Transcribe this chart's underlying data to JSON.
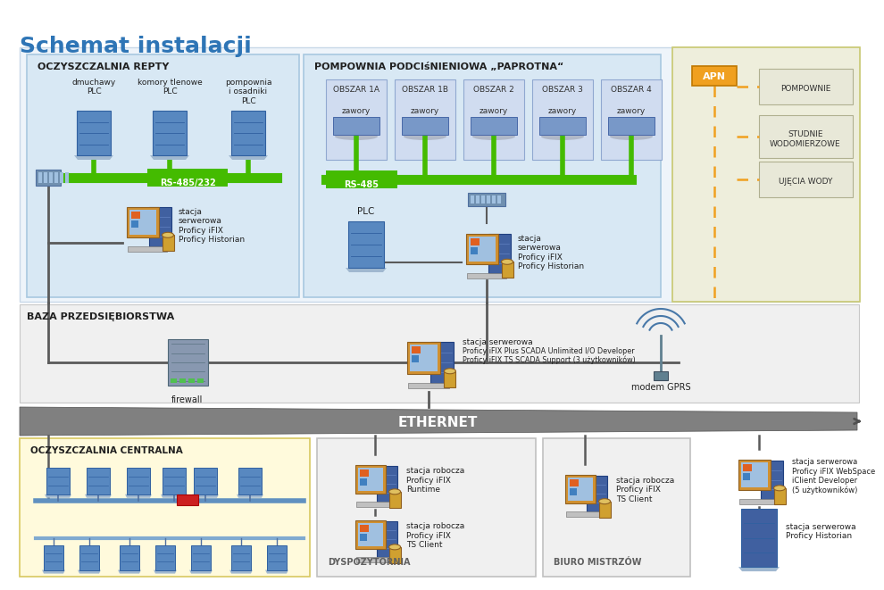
{
  "title": "Schemat instalacji",
  "title_color": "#2E75B6",
  "bg_color": "#FFFFFF",
  "rs485_color": "#44BB00",
  "line_color": "#5A5A5A",
  "ethernet_label": "ETHERNET",
  "ethernet_color": "#707070",
  "apn_color": "#F0A020",
  "apn_label": "APN",
  "apn_boxes": [
    "POMPOWNIE",
    "STUDNIE\nWODOMIERZOWE",
    "UJĘCIA WODY"
  ],
  "areas": [
    "OBSZAR 1A",
    "OBSZAR 1B",
    "OBSZAR 2",
    "OBSZAR 3",
    "OBSZAR 4"
  ],
  "repty_label": "OCZYSZCZALNIA REPTY",
  "pompownia_label": "POMPOWNIA PODCIśNIENIOWA „PAPROTNA“",
  "baza_label": "BAZA PRZEDSIĘBIORSTWA",
  "centralna_label": "OCZYSZCZALNIA CENTRALNA",
  "dyspozytornia_label": "DYSPOZYTORNIA",
  "biuro_label": "BIURO MISTRZÓW",
  "plc_labels_repty": [
    "dmuchawy\nPLC",
    "komory tlenowe\nPLC",
    "pompownia\ni osadniki\nPLC"
  ],
  "rs485_label": "RS-485/232",
  "rs485b_label": "RS-485",
  "server_repty_label": "stacja\nserwerowa\nProficy iFIX\nProficy Historian",
  "server_pompownia_label": "stacja\nserwerowa\nProficy iFIX\nProficy Historian",
  "plc_pompownia_label": "PLC",
  "firewall_label": "firewall",
  "server_baza_line1": "stacja serwerowa",
  "server_baza_line2": "Proficy iFIX Plus SCADA Unlimited I/O Developer",
  "server_baza_line3": "Proficy iFIX TS SCADA Support (3 użytkowników)",
  "modem_label": "modem GPRS",
  "stacja_runtime_label": "stacja robocza\nProficy iFIX\nRuntime",
  "stacja_ts_label": "stacja robocza\nProficy iFIX\nTS Client",
  "stacja_ts2_label": "stacja robocza\nProficy iFIX\nTS Client",
  "server_webspace_label": "stacja serwerowa\nProficy iFIX WebSpace\niClient Developer\n(5 użytkowników)",
  "server_historian_label": "stacja serwerowa\nProficy Historian",
  "zawory_label": "zawory",
  "repty_bg": "#D8E8F4",
  "repty_border": "#A8C8E0",
  "pompownia_bg": "#D8E8F4",
  "pompownia_border": "#A8C8E0",
  "apn_bg": "#EEEEDC",
  "apn_border": "#C8C870",
  "baza_bg": "#F0F0F0",
  "baza_border": "#C8C8C8",
  "centralna_bg": "#FFFADC",
  "centralna_border": "#D8C860",
  "dysp_bg": "#F0F0F0",
  "dysp_border": "#C0C0C0",
  "biuro_bg": "#F0F0F0",
  "biuro_border": "#C0C0C0",
  "area_bg": "#D0DCF0",
  "area_border": "#90A8D0",
  "plc_color": "#5888C0",
  "server_dark": "#4060A0",
  "firewall_color": "#7090A8"
}
